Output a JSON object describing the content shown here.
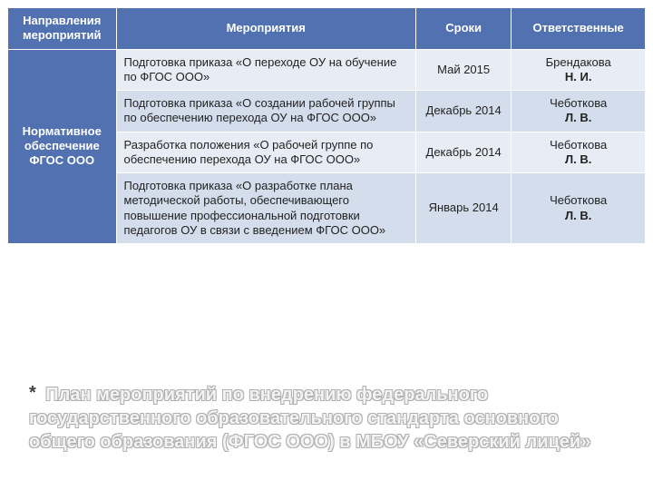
{
  "table": {
    "col_widths": [
      "17%",
      "47%",
      "15%",
      "21%"
    ],
    "header_bg": "#5171b0",
    "header_color": "#ffffff",
    "row_bgs": [
      "#e8ecf4",
      "#d4ddec",
      "#e8ecf4",
      "#d4ddec"
    ],
    "border_color": "#ffffff",
    "headers": {
      "direction": "Направления мероприятий",
      "activity": "Мероприятия",
      "date": "Сроки",
      "responsible": "Ответственные"
    },
    "direction_label": "Нормативное обеспечение ФГОС ООО",
    "rows": [
      {
        "activity": "Подготовка приказа «О переходе ОУ на обучение по ФГОС ООО»",
        "date": "Май 2015",
        "resp_name": "Брендакова",
        "resp_init": "Н. И."
      },
      {
        "activity": "Подготовка приказа «О создании рабочей группы по обеспечению перехода ОУ на ФГОС ООО»",
        "date": "Декабрь 2014",
        "resp_name": "Чеботкова",
        "resp_init": "Л. В."
      },
      {
        "activity": "Разработка положения «О рабочей группе по обеспечению перехода ОУ на ФГОС ООО»",
        "date": "Декабрь 2014",
        "resp_name": "Чеботкова",
        "resp_init": "Л. В."
      },
      {
        "activity": "Подготовка приказа «О разработке плана методической работы, обеспечивающего повышение профессиональной подготовки педагогов ОУ в связи с введением ФГОС ООО»",
        "date": "Январь 2014",
        "resp_name": "Чеботкова",
        "resp_init": "Л. В."
      }
    ]
  },
  "caption": {
    "star": "*",
    "text": "План мероприятий по внедрению федерального государственного образовательного стандарта основного общего образования (ФГОС ООО) в МБОУ «Северский лицей»",
    "text_color": "#f3f3f3",
    "outline_color": "#b0b0b0",
    "font_size_pt": 15
  }
}
